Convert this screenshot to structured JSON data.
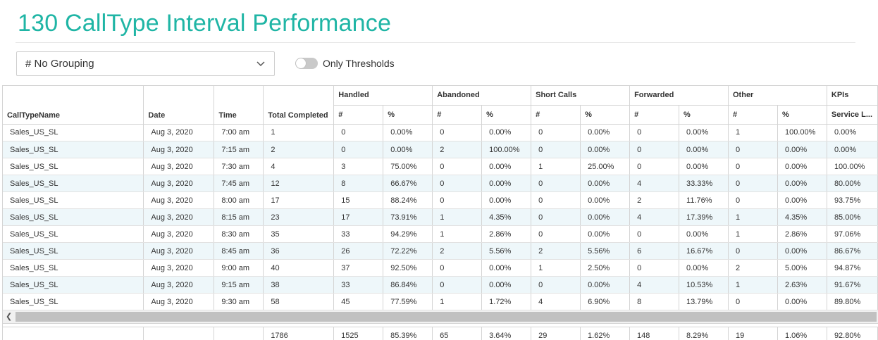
{
  "page": {
    "title": "130 CallType Interval Performance"
  },
  "toolbar": {
    "grouping_value": "# No Grouping",
    "toggle_label": "Only Thresholds",
    "toggle_on": false
  },
  "table": {
    "fixed_headers": [
      "CallTypeName",
      "Date",
      "Time",
      "Total Completed"
    ],
    "groups": [
      "Handled",
      "Abandoned",
      "Short Calls",
      "Forwarded",
      "Other",
      "KPIs"
    ],
    "sub_headers": [
      "#",
      "%",
      "#",
      "%",
      "#",
      "%",
      "#",
      "%",
      "#",
      "%",
      "Service L..."
    ],
    "rows": [
      [
        "Sales_US_SL",
        "Aug 3, 2020",
        "7:00 am",
        "1",
        "0",
        "0.00%",
        "0",
        "0.00%",
        "0",
        "0.00%",
        "0",
        "0.00%",
        "1",
        "100.00%",
        "0.00%"
      ],
      [
        "Sales_US_SL",
        "Aug 3, 2020",
        "7:15 am",
        "2",
        "0",
        "0.00%",
        "2",
        "100.00%",
        "0",
        "0.00%",
        "0",
        "0.00%",
        "0",
        "0.00%",
        "0.00%"
      ],
      [
        "Sales_US_SL",
        "Aug 3, 2020",
        "7:30 am",
        "4",
        "3",
        "75.00%",
        "0",
        "0.00%",
        "1",
        "25.00%",
        "0",
        "0.00%",
        "0",
        "0.00%",
        "100.00%"
      ],
      [
        "Sales_US_SL",
        "Aug 3, 2020",
        "7:45 am",
        "12",
        "8",
        "66.67%",
        "0",
        "0.00%",
        "0",
        "0.00%",
        "4",
        "33.33%",
        "0",
        "0.00%",
        "80.00%"
      ],
      [
        "Sales_US_SL",
        "Aug 3, 2020",
        "8:00 am",
        "17",
        "15",
        "88.24%",
        "0",
        "0.00%",
        "0",
        "0.00%",
        "2",
        "11.76%",
        "0",
        "0.00%",
        "93.75%"
      ],
      [
        "Sales_US_SL",
        "Aug 3, 2020",
        "8:15 am",
        "23",
        "17",
        "73.91%",
        "1",
        "4.35%",
        "0",
        "0.00%",
        "4",
        "17.39%",
        "1",
        "4.35%",
        "85.00%"
      ],
      [
        "Sales_US_SL",
        "Aug 3, 2020",
        "8:30 am",
        "35",
        "33",
        "94.29%",
        "1",
        "2.86%",
        "0",
        "0.00%",
        "0",
        "0.00%",
        "1",
        "2.86%",
        "97.06%"
      ],
      [
        "Sales_US_SL",
        "Aug 3, 2020",
        "8:45 am",
        "36",
        "26",
        "72.22%",
        "2",
        "5.56%",
        "2",
        "5.56%",
        "6",
        "16.67%",
        "0",
        "0.00%",
        "86.67%"
      ],
      [
        "Sales_US_SL",
        "Aug 3, 2020",
        "9:00 am",
        "40",
        "37",
        "92.50%",
        "0",
        "0.00%",
        "1",
        "2.50%",
        "0",
        "0.00%",
        "2",
        "5.00%",
        "94.87%"
      ],
      [
        "Sales_US_SL",
        "Aug 3, 2020",
        "9:15 am",
        "38",
        "33",
        "86.84%",
        "0",
        "0.00%",
        "0",
        "0.00%",
        "4",
        "10.53%",
        "1",
        "2.63%",
        "91.67%"
      ],
      [
        "Sales_US_SL",
        "Aug 3, 2020",
        "9:30 am",
        "58",
        "45",
        "77.59%",
        "1",
        "1.72%",
        "4",
        "6.90%",
        "8",
        "13.79%",
        "0",
        "0.00%",
        "89.80%"
      ]
    ],
    "totals": [
      "",
      "",
      "",
      "1786",
      "1525",
      "85.39%",
      "65",
      "3.64%",
      "29",
      "1.62%",
      "148",
      "8.29%",
      "19",
      "1.06%",
      "92.80%"
    ]
  },
  "icons": {
    "dropdown": "chevron-down-icon",
    "scroll_left": "chevron-left-icon"
  },
  "colors": {
    "title": "#1fb5a5",
    "row_alt": "#eef7fa",
    "toggle_off": "#c9c9c9"
  }
}
